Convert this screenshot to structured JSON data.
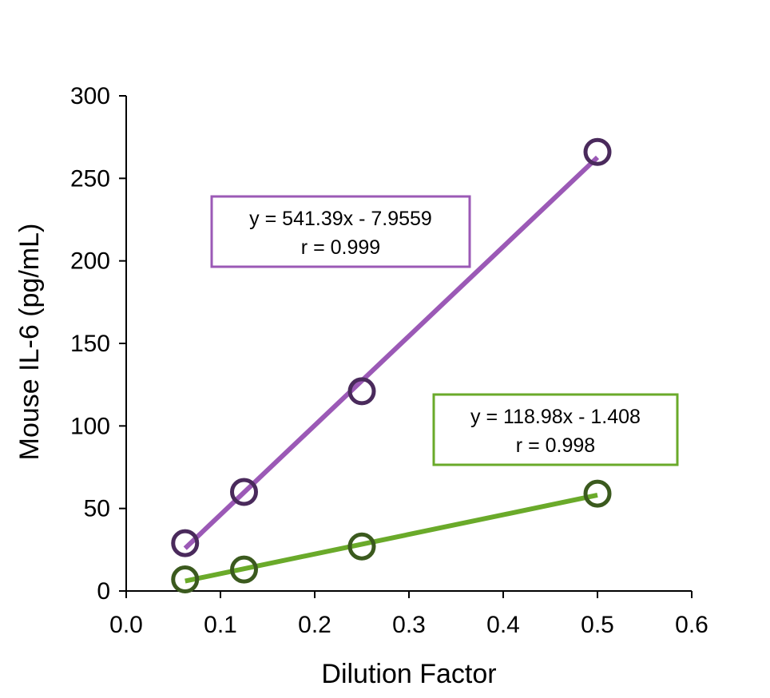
{
  "chart_data": {
    "type": "scatter",
    "title": "",
    "xlabel": "Dilution Factor",
    "ylabel": "Mouse IL-6 (pg/mL)",
    "xlim": [
      0,
      0.6
    ],
    "ylim": [
      0,
      300
    ],
    "x_ticks": [
      "0.0",
      "0.1",
      "0.2",
      "0.3",
      "0.4",
      "0.5",
      "0.6"
    ],
    "y_ticks": [
      "0",
      "50",
      "100",
      "150",
      "200",
      "250",
      "300"
    ],
    "grid": false,
    "series": [
      {
        "color": "#9b59b6",
        "marker_color": "#4a2a5c",
        "x": [
          0.0625,
          0.125,
          0.25,
          0.5
        ],
        "y": [
          29,
          60,
          121,
          266
        ],
        "trendline": {
          "slope": 541.39,
          "intercept": -7.9559
        },
        "equation": "y = 541.39x - 7.9559",
        "r_label": "r = 0.999"
      },
      {
        "color": "#6aaa2a",
        "marker_color": "#3b5a1e",
        "x": [
          0.0625,
          0.125,
          0.25,
          0.5
        ],
        "y": [
          7,
          13,
          27,
          59
        ],
        "trendline": {
          "slope": 118.98,
          "intercept": -1.408
        },
        "equation": "y = 118.98x - 1.408",
        "r_label": "r = 0.998"
      }
    ]
  }
}
